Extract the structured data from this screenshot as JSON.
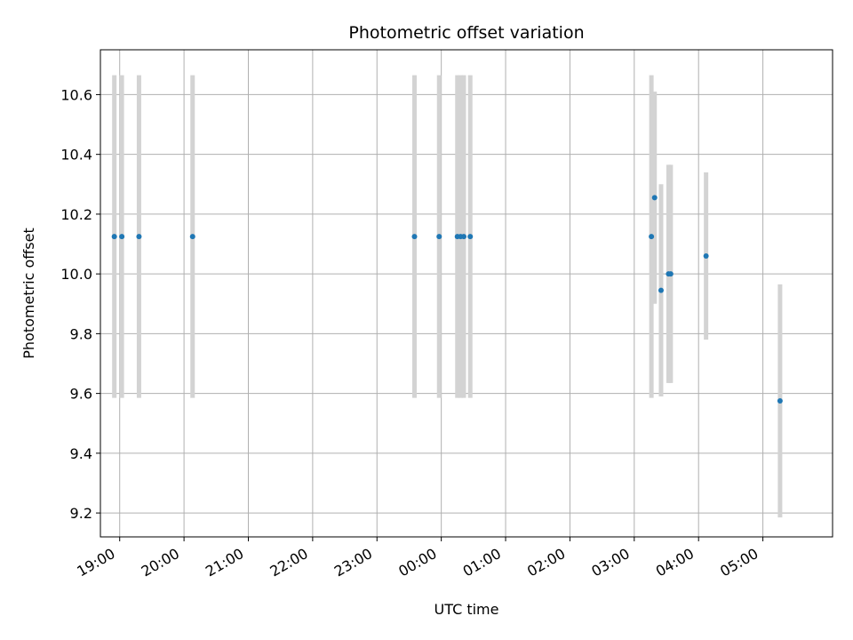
{
  "chart_data": {
    "type": "scatter",
    "title": "Photometric offset variation",
    "xlabel": "UTC time",
    "ylabel": "Photometric offset",
    "x_unit": "time_of_day_HH:MM (values past 24:00 are next day)",
    "xlim": [
      "18:42",
      "30:05"
    ],
    "ylim": [
      9.12,
      10.75
    ],
    "grid": true,
    "x_ticks": [
      {
        "t": "19:00",
        "label": "19:00"
      },
      {
        "t": "20:00",
        "label": "20:00"
      },
      {
        "t": "21:00",
        "label": "21:00"
      },
      {
        "t": "22:00",
        "label": "22:00"
      },
      {
        "t": "23:00",
        "label": "23:00"
      },
      {
        "t": "24:00",
        "label": "00:00"
      },
      {
        "t": "25:00",
        "label": "01:00"
      },
      {
        "t": "26:00",
        "label": "02:00"
      },
      {
        "t": "27:00",
        "label": "03:00"
      },
      {
        "t": "28:00",
        "label": "04:00"
      },
      {
        "t": "29:00",
        "label": "05:00"
      }
    ],
    "y_ticks": [
      9.2,
      9.4,
      9.6,
      9.8,
      10.0,
      10.2,
      10.4,
      10.6
    ],
    "y_tick_labels": [
      "9.2",
      "9.4",
      "9.6",
      "9.8",
      "10.0",
      "10.2",
      "10.4",
      "10.6"
    ],
    "point_color": "#1f77b4",
    "errorbar_color": "#d3d3d3",
    "points": [
      {
        "t": "18:55",
        "y": 10.125,
        "err": 0.54
      },
      {
        "t": "19:02",
        "y": 10.125,
        "err": 0.54
      },
      {
        "t": "19:18",
        "y": 10.125,
        "err": 0.54
      },
      {
        "t": "20:08",
        "y": 10.125,
        "err": 0.54
      },
      {
        "t": "23:35",
        "y": 10.125,
        "err": 0.54
      },
      {
        "t": "23:58",
        "y": 10.125,
        "err": 0.54
      },
      {
        "t": "24:15",
        "y": 10.125,
        "err": 0.54
      },
      {
        "t": "24:18",
        "y": 10.125,
        "err": 0.54
      },
      {
        "t": "24:21",
        "y": 10.125,
        "err": 0.54
      },
      {
        "t": "24:27",
        "y": 10.125,
        "err": 0.54
      },
      {
        "t": "27:16",
        "y": 10.125,
        "err": 0.54
      },
      {
        "t": "27:19",
        "y": 10.255,
        "err": 0.355
      },
      {
        "t": "27:25",
        "y": 9.945,
        "err": 0.355
      },
      {
        "t": "27:32",
        "y": 10.0,
        "err": 0.365
      },
      {
        "t": "27:34",
        "y": 10.0,
        "err": 0.365
      },
      {
        "t": "28:07",
        "y": 10.06,
        "err": 0.28
      },
      {
        "t": "29:16",
        "y": 9.575,
        "err": 0.39
      }
    ]
  }
}
